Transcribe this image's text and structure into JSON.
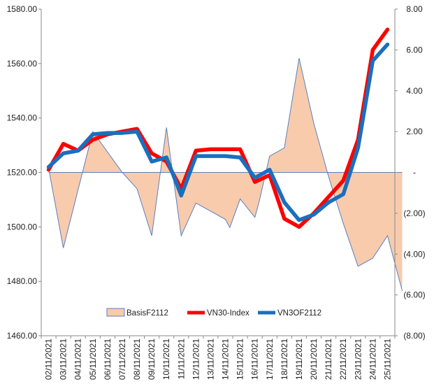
{
  "chart_data": {
    "type": "line",
    "categories": [
      "02/11/2021",
      "03/11/2021",
      "04/11/2021",
      "05/11/2021",
      "06/11/2021",
      "07/11/2021",
      "08/11/2021",
      "09/11/2021",
      "10/11/2021",
      "11/11/2021",
      "12/11/2021",
      "13/11/2021",
      "14/11/2021",
      "15/11/2021",
      "16/11/2021",
      "17/11/2021",
      "18/11/2021",
      "19/11/2021",
      "20/11/2021",
      "21/11/2021",
      "22/11/2021",
      "23/11/2021",
      "24/11/2021",
      "25/11/2021"
    ],
    "left_axis": {
      "ylim": [
        1460,
        1580
      ],
      "ticks": [
        1460,
        1480,
        1500,
        1520,
        1540,
        1560,
        1580
      ],
      "tick_labels": [
        "1460.00",
        "1480.00",
        "1500.00",
        "1520.00",
        "1540.00",
        "1560.00",
        "1580.00"
      ]
    },
    "right_axis": {
      "ylim": [
        -8,
        8
      ],
      "ticks": [
        -8,
        -6,
        -4,
        -2,
        0,
        2,
        4,
        6,
        8
      ],
      "tick_labels": [
        "(8.00)",
        "(6.00)",
        "(4.00)",
        "(2.00)",
        "-",
        "2.00",
        "4.00",
        "6.00",
        "8.00"
      ]
    },
    "series": [
      {
        "name": "BasisF2112",
        "axis": "right",
        "kind": "area",
        "color": "#f8cbad",
        "edge_color": "#5b7fbf",
        "points": [
          [
            0,
            0.2
          ],
          [
            1,
            -3.7
          ],
          [
            3,
            2.0
          ],
          [
            5,
            0.0
          ],
          [
            6,
            -0.8
          ],
          [
            7,
            -3.1
          ],
          [
            8,
            2.2
          ],
          [
            9,
            -3.1
          ],
          [
            10,
            -1.5
          ],
          [
            11,
            -1.9
          ],
          [
            12,
            -2.3
          ],
          [
            12.3,
            -2.7
          ],
          [
            13,
            -1.3
          ],
          [
            14,
            -2.2
          ],
          [
            14.3,
            -1.4
          ],
          [
            15,
            0.8
          ],
          [
            16,
            1.2
          ],
          [
            17,
            5.6
          ],
          [
            18,
            2.4
          ],
          [
            19,
            -0.2
          ],
          [
            20,
            -2.5
          ],
          [
            21,
            -4.6
          ],
          [
            22,
            -4.2
          ],
          [
            23,
            -3.1
          ],
          [
            24,
            -5.8
          ]
        ]
      },
      {
        "name": "VN30-Index",
        "axis": "left",
        "kind": "line",
        "color": "#ff0000",
        "points": [
          [
            0,
            1521
          ],
          [
            1,
            1530.5
          ],
          [
            2,
            1528
          ],
          [
            3,
            1532
          ],
          [
            4,
            1534
          ],
          [
            5,
            1535
          ],
          [
            6,
            1536
          ],
          [
            7,
            1527
          ],
          [
            8,
            1524
          ],
          [
            9,
            1514
          ],
          [
            10,
            1528
          ],
          [
            11,
            1528.5
          ],
          [
            12,
            1528.5
          ],
          [
            13,
            1528.5
          ],
          [
            14,
            1516.5
          ],
          [
            15,
            1519
          ],
          [
            16,
            1503
          ],
          [
            17,
            1500
          ],
          [
            18,
            1505
          ],
          [
            19,
            1511
          ],
          [
            20,
            1517
          ],
          [
            21,
            1532
          ],
          [
            22,
            1565
          ],
          [
            23,
            1572.5
          ]
        ]
      },
      {
        "name": "VN3OF2112",
        "axis": "left",
        "kind": "line",
        "color": "#1a6fbe",
        "points": [
          [
            0,
            1522
          ],
          [
            1,
            1527
          ],
          [
            2,
            1528
          ],
          [
            3,
            1534
          ],
          [
            4,
            1534.5
          ],
          [
            5,
            1534.5
          ],
          [
            6,
            1535
          ],
          [
            7,
            1524
          ],
          [
            8,
            1525.5
          ],
          [
            9,
            1511.5
          ],
          [
            10,
            1526
          ],
          [
            11,
            1526
          ],
          [
            12,
            1526
          ],
          [
            13,
            1525.5
          ],
          [
            14,
            1518
          ],
          [
            15,
            1521
          ],
          [
            16,
            1509
          ],
          [
            17,
            1502.5
          ],
          [
            18,
            1504.5
          ],
          [
            19,
            1509
          ],
          [
            20,
            1512
          ],
          [
            21,
            1529
          ],
          [
            22,
            1561
          ],
          [
            23,
            1567
          ]
        ]
      }
    ]
  }
}
